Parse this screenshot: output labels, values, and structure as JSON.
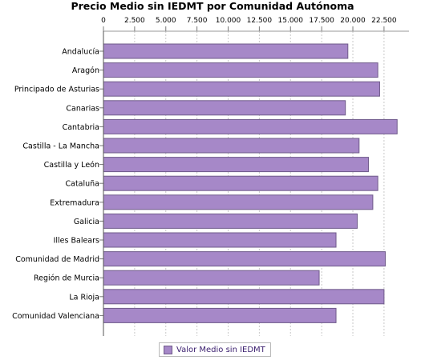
{
  "chart_data": {
    "type": "bar",
    "orientation": "horizontal",
    "title": "Precio Medio sin IEDMT por Comunidad Autónoma",
    "xlim": [
      0,
      24500
    ],
    "x_ticks": [
      "0",
      "2.500",
      "5.000",
      "7.500",
      "10.000",
      "12.500",
      "15.000",
      "17.500",
      "20.000",
      "22.500"
    ],
    "x_tick_values": [
      0,
      2500,
      5000,
      7500,
      10000,
      12500,
      15000,
      17500,
      20000,
      22500
    ],
    "categories": [
      "Andalucía",
      "Aragón",
      "Principado de Asturias",
      "Canarias",
      "Cantabria",
      "Castilla - La Mancha",
      "Castilla y León",
      "Cataluña",
      "Extremadura",
      "Galicia",
      "Illes Balears",
      "Comunidad de Madrid",
      "Región de Murcia",
      "La Rioja",
      "Comunidad Valenciana"
    ],
    "series": [
      {
        "name": "Valor Medio sin IEDMT",
        "values": [
          19600,
          22000,
          22150,
          19400,
          23550,
          20500,
          21250,
          22000,
          21600,
          20350,
          18650,
          22600,
          17300,
          22500,
          18650
        ]
      }
    ],
    "grid": true,
    "legend": "bottom",
    "colors": {
      "bar_fill": "#a688c8",
      "bar_stroke": "#6f5a8a",
      "grid": "#c8c8c8"
    }
  }
}
